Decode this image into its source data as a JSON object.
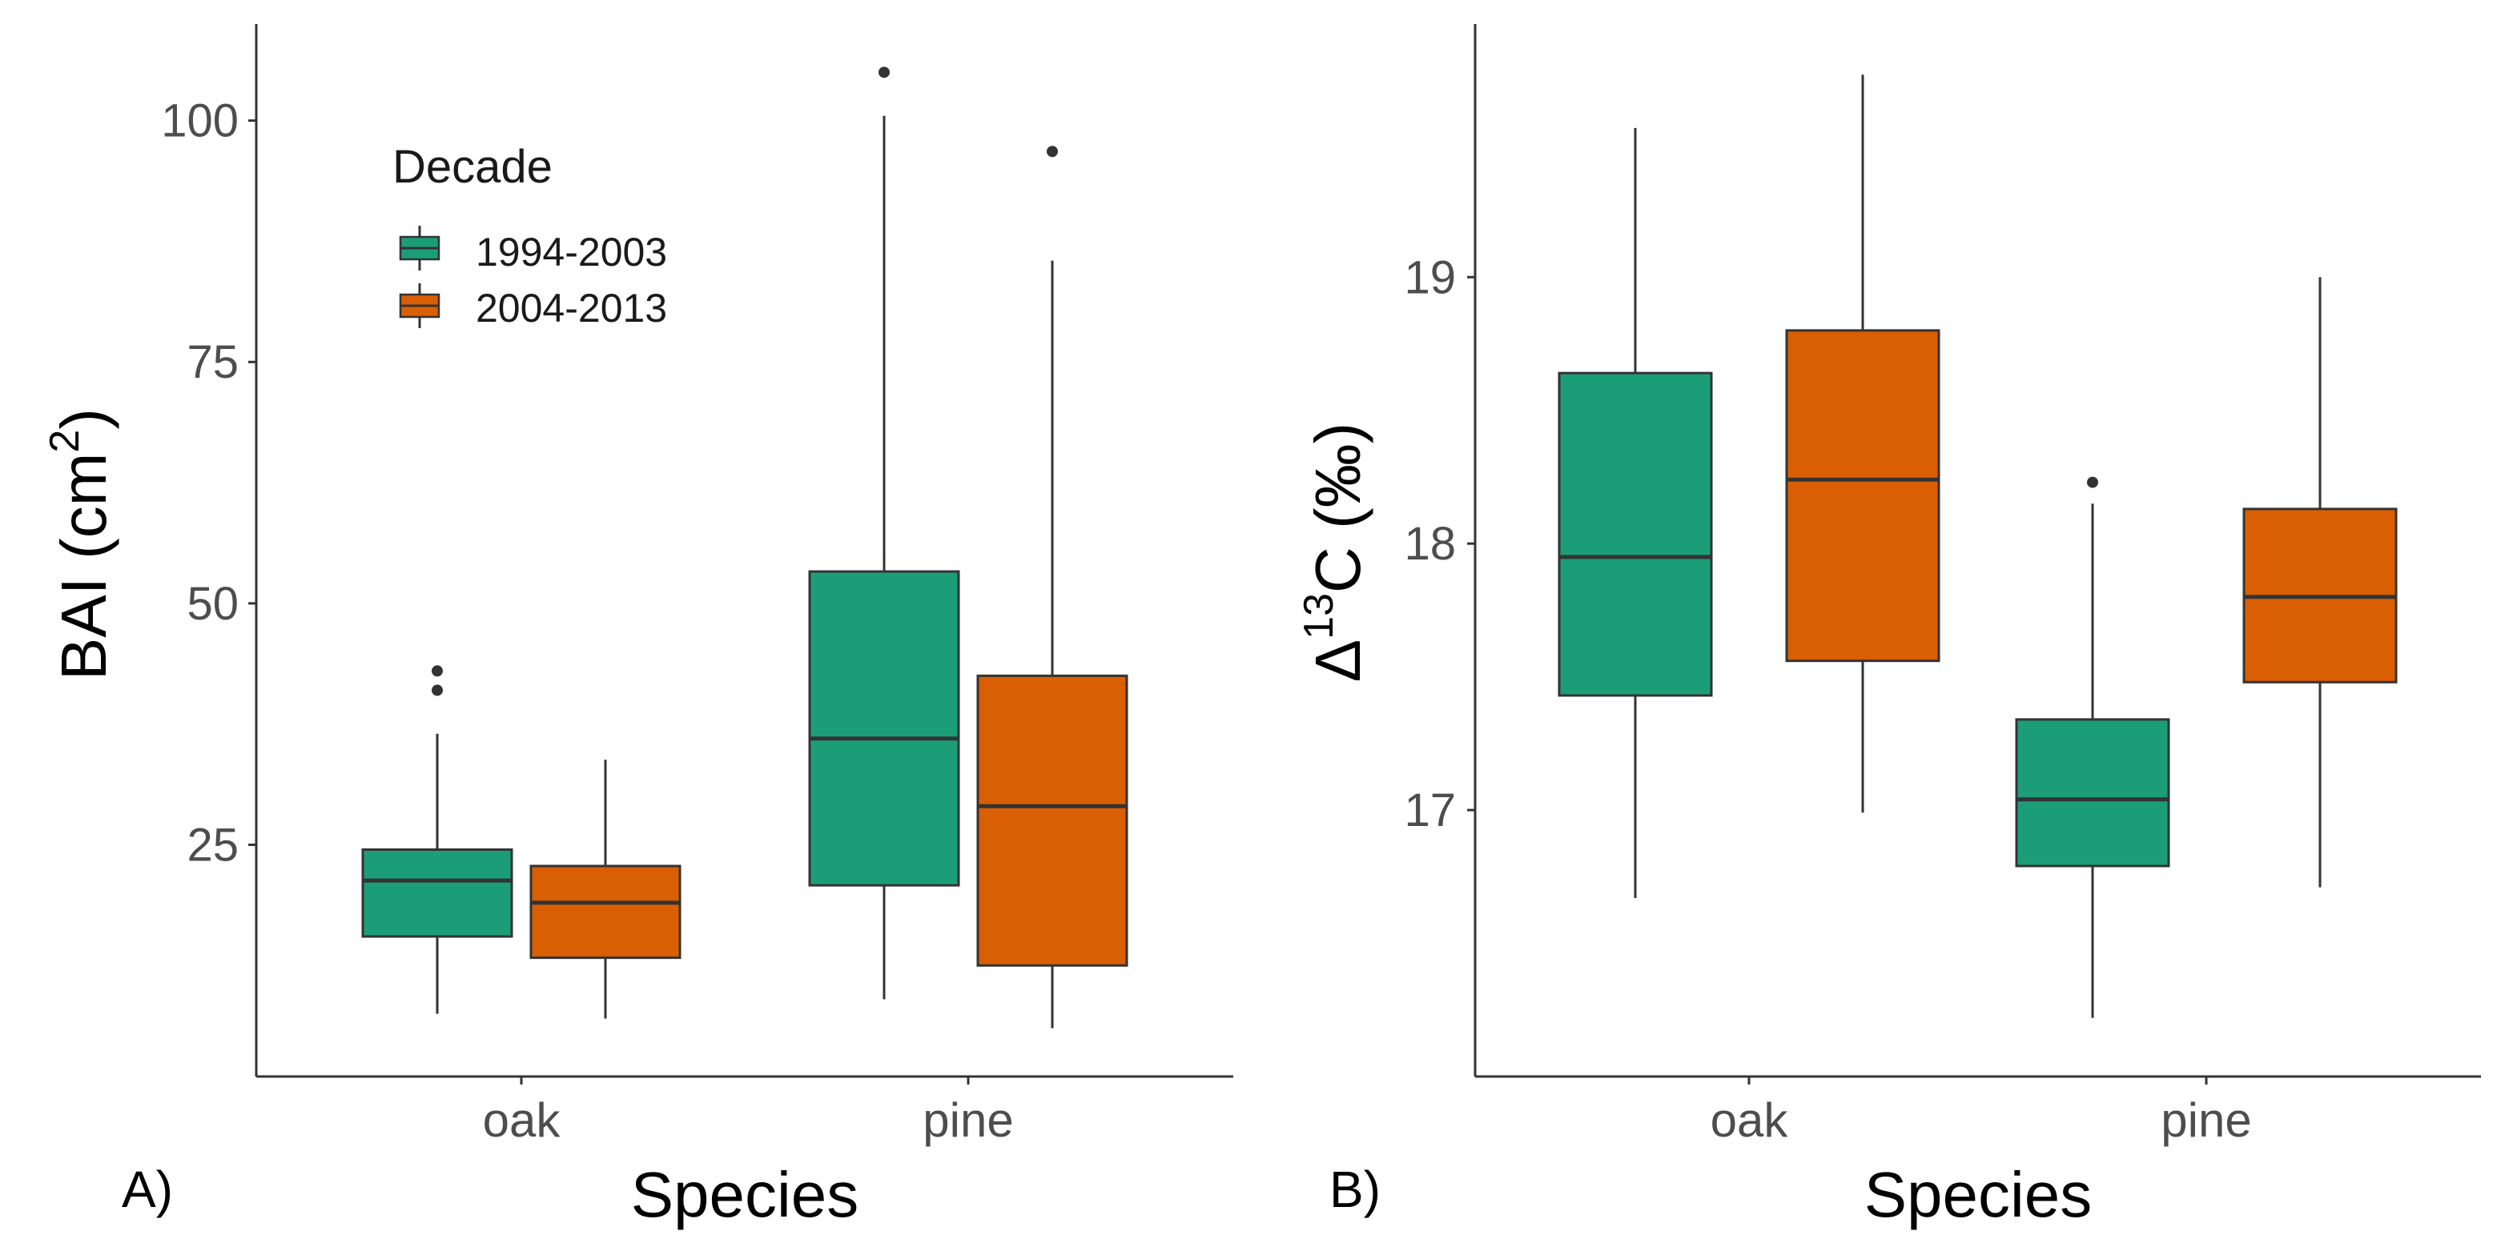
{
  "colors": {
    "1994-2003": "#1b9e77",
    "2004-2013": "#d95f02",
    "axis": "#333333",
    "whisker": "#333333",
    "median": "#333333",
    "outlier": "#333333"
  },
  "legend": {
    "title": "Decade",
    "entries": [
      "1994-2003",
      "2004-2013"
    ]
  },
  "chart_data": [
    {
      "type": "boxplot",
      "panel_label": "A)",
      "xlabel": "Species",
      "ylabel_main": "BAI (cm",
      "ylabel_sup": "2",
      "ylabel_close": ")",
      "ylim": [
        1,
        110
      ],
      "yticks": [
        25,
        50,
        75,
        100
      ],
      "ytick_labels": [
        "25",
        "50",
        "75",
        "100"
      ],
      "categories": [
        "oak",
        "pine"
      ],
      "legend_position": "top-left",
      "series": [
        {
          "name": "1994-2003",
          "boxes": [
            {
              "category": "oak",
              "whisker_low": 7.5,
              "q1": 15.5,
              "median": 21.3,
              "q3": 24.5,
              "whisker_high": 36.5,
              "outliers": [
                41.0,
                43.0
              ]
            },
            {
              "category": "pine",
              "whisker_low": 9.0,
              "q1": 20.8,
              "median": 36.0,
              "q3": 53.3,
              "whisker_high": 100.5,
              "outliers": [
                105.0
              ]
            }
          ]
        },
        {
          "name": "2004-2013",
          "boxes": [
            {
              "category": "oak",
              "whisker_low": 7.0,
              "q1": 13.3,
              "median": 19.0,
              "q3": 22.8,
              "whisker_high": 33.8,
              "outliers": []
            },
            {
              "category": "pine",
              "whisker_low": 6.0,
              "q1": 12.5,
              "median": 29.0,
              "q3": 42.5,
              "whisker_high": 85.5,
              "outliers": [
                96.8
              ]
            }
          ]
        }
      ]
    },
    {
      "type": "boxplot",
      "panel_label": "B)",
      "xlabel": "Species",
      "ylabel_delta": "Δ",
      "ylabel_sup": "13",
      "ylabel_rest": "C (‰)",
      "ylim": [
        16.0,
        19.95
      ],
      "yticks": [
        17,
        18,
        19
      ],
      "ytick_labels": [
        "17",
        "18",
        "19"
      ],
      "categories": [
        "oak",
        "pine"
      ],
      "series": [
        {
          "name": "1994-2003",
          "boxes": [
            {
              "category": "oak",
              "whisker_low": 16.67,
              "q1": 17.43,
              "median": 17.95,
              "q3": 18.64,
              "whisker_high": 19.56,
              "outliers": []
            },
            {
              "category": "pine",
              "whisker_low": 16.22,
              "q1": 16.79,
              "median": 17.04,
              "q3": 17.34,
              "whisker_high": 18.15,
              "outliers": [
                18.23
              ]
            }
          ]
        },
        {
          "name": "2004-2013",
          "boxes": [
            {
              "category": "oak",
              "whisker_low": 16.99,
              "q1": 17.56,
              "median": 18.24,
              "q3": 18.8,
              "whisker_high": 19.76,
              "outliers": []
            },
            {
              "category": "pine",
              "whisker_low": 16.71,
              "q1": 17.48,
              "median": 17.8,
              "q3": 18.13,
              "whisker_high": 19.0,
              "outliers": []
            }
          ]
        }
      ]
    }
  ]
}
